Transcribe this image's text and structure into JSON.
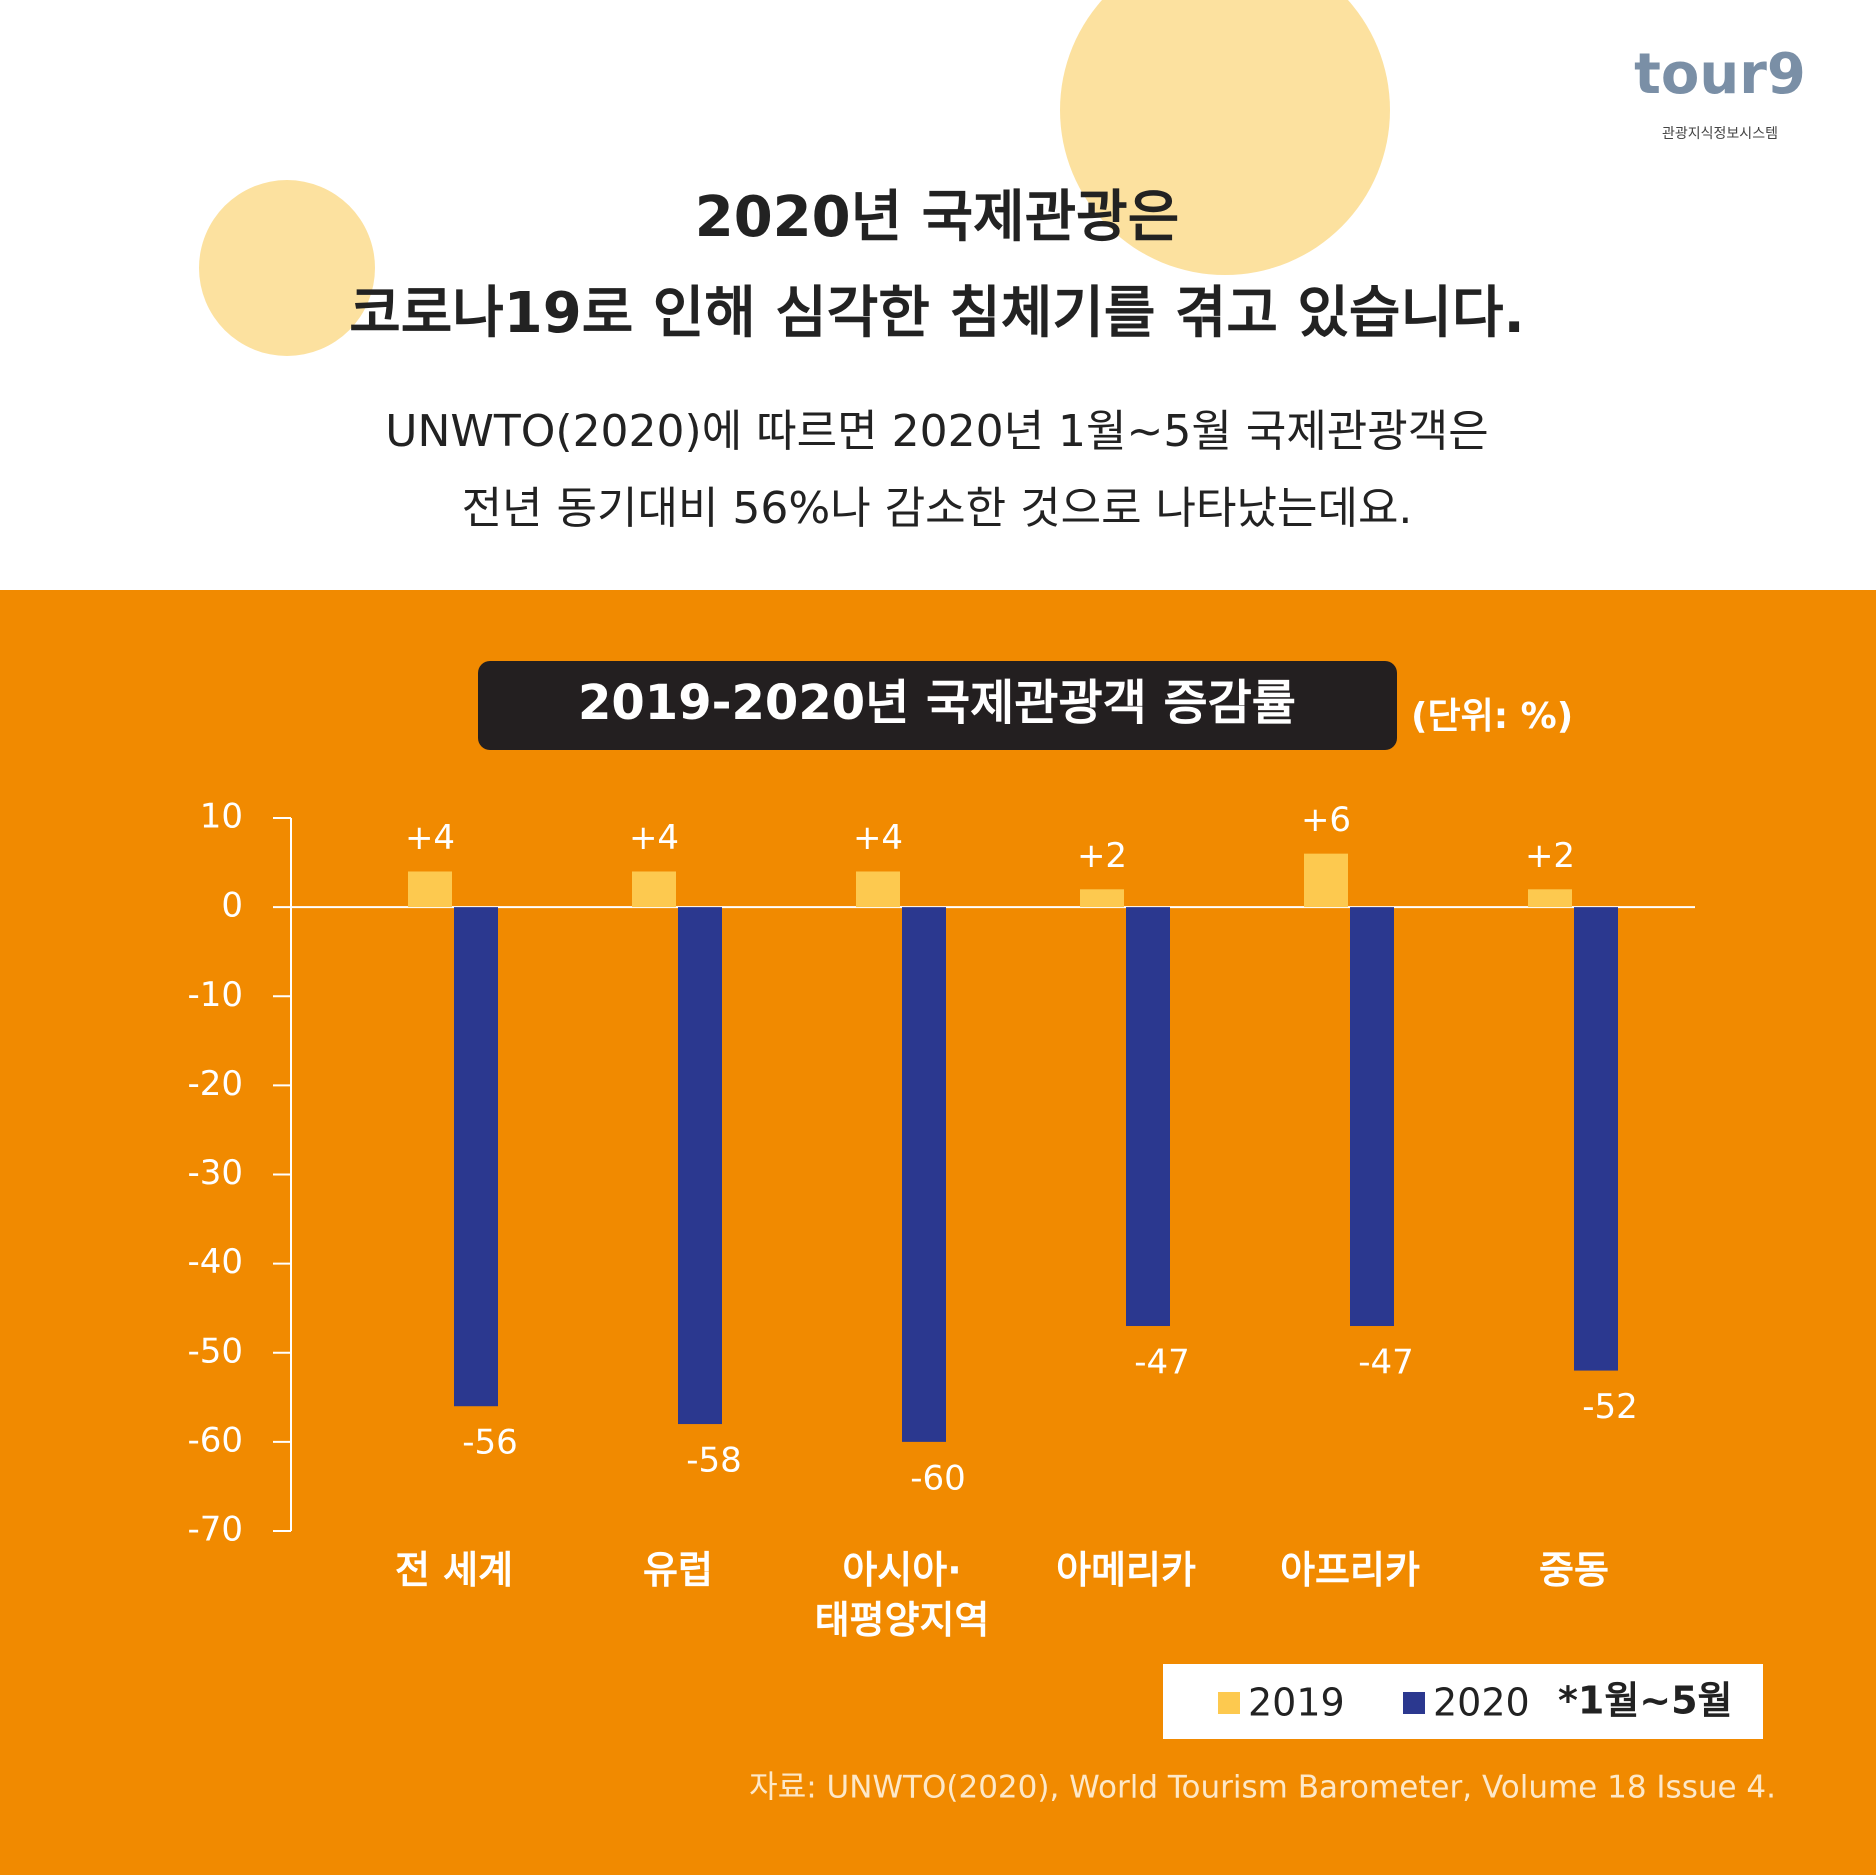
{
  "header": {
    "title": [
      "2020년 국제관광은",
      "코로나19로 인해 심각한 침체기를 겪고 있습니다."
    ],
    "subtitle": [
      "UNWTO(2020)에 따르면 2020년 1월~5월 국제관광객은",
      "전년 동기대비 56%나 감소한 것으로 나타났는데요."
    ]
  },
  "logo": {
    "name": "tour9",
    "caption": "관광지식정보시스템"
  },
  "chart_data": {
    "type": "bar",
    "title": "2019-2020년 국제관광객 증감률",
    "unit": "(단위: %)",
    "categories": [
      "전 세계",
      "유럽",
      "아시아·\n태평양지역",
      "아메리카",
      "아프리카",
      "중동"
    ],
    "series": [
      {
        "name": "2019",
        "color": "#fdc94f",
        "values": [
          4,
          4,
          4,
          2,
          6,
          2
        ],
        "value_labels": [
          "+4",
          "+4",
          "+4",
          "+2",
          "+6",
          "+2"
        ]
      },
      {
        "name": "2020",
        "color": "#2b388f",
        "values": [
          -56,
          -58,
          -60,
          -47,
          -47,
          -52
        ]
      }
    ],
    "legend_note": "*1월~5월",
    "ylim": [
      -70,
      10
    ],
    "yticks": [
      -70,
      -60,
      -50,
      -40,
      -30,
      -20,
      -10,
      0,
      10
    ],
    "source": "자료: UNWTO(2020), World Tourism Barometer, Volume 18 Issue 4."
  }
}
